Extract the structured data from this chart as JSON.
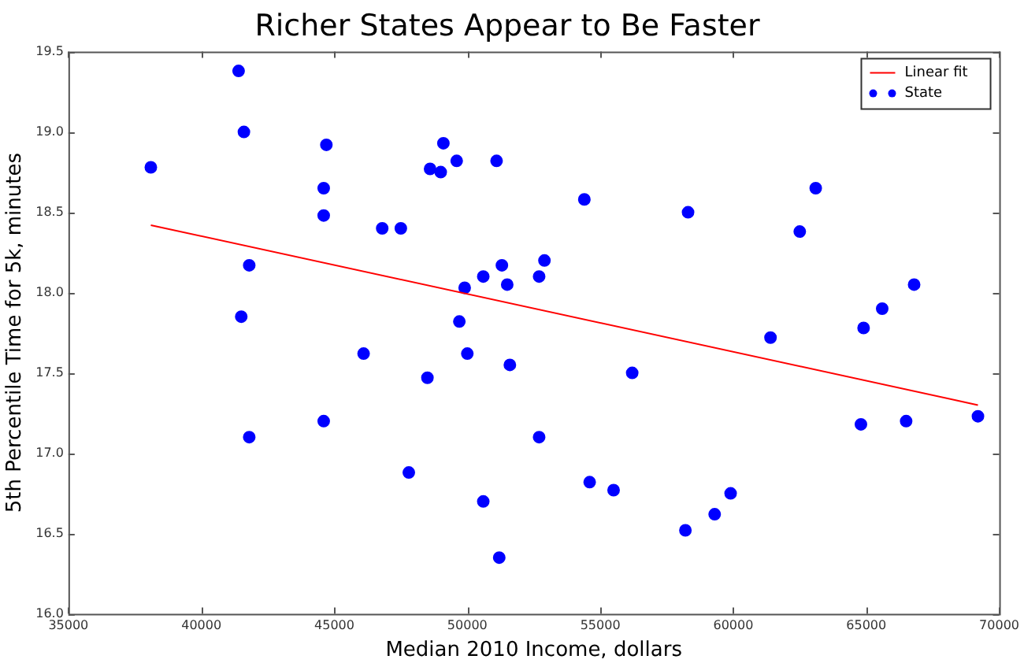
{
  "chart_data": {
    "type": "scatter",
    "title": "Richer States Appear to Be Faster",
    "xlabel": "Median 2010 Income, dollars",
    "ylabel": "5th Percentile Time for 5k, minutes",
    "xlim": [
      35000,
      70000
    ],
    "xticks": [
      35000,
      40000,
      45000,
      50000,
      55000,
      60000,
      65000,
      70000
    ],
    "ylim": [
      16.0,
      19.5
    ],
    "yticks": [
      {
        "value": 16.0,
        "label": "16.0"
      },
      {
        "value": 16.5,
        "label": "16.5"
      },
      {
        "value": 17.0,
        "label": "17.0"
      },
      {
        "value": 17.5,
        "label": "17.5"
      },
      {
        "value": 18.0,
        "label": "18.0"
      },
      {
        "value": 18.5,
        "label": "18.5"
      },
      {
        "value": 19.0,
        "label": "19.0"
      },
      {
        "value": 19.5,
        "label": "19.5"
      }
    ],
    "grid": false,
    "legend": "top right",
    "marker": "circle",
    "series": [
      {
        "name": "Linear fit",
        "type": "line",
        "color": "#ff0000",
        "marker": "none",
        "x": [
          38100,
          69200
        ],
        "values": [
          18.42,
          17.3
        ]
      },
      {
        "name": "State",
        "type": "scatter",
        "color": "#0000ff",
        "x": [
          38100,
          41400,
          41600,
          41800,
          41500,
          41800,
          44600,
          44600,
          44700,
          44600,
          46100,
          46800,
          47500,
          47800,
          48600,
          48500,
          49000,
          49100,
          49600,
          49700,
          49900,
          50000,
          50600,
          50600,
          51100,
          51200,
          51300,
          51500,
          51600,
          52700,
          52900,
          52700,
          54400,
          54600,
          55500,
          56200,
          58300,
          58200,
          59300,
          59900,
          61400,
          62500,
          63100,
          64900,
          64800,
          65600,
          66500,
          66800,
          69200
        ],
        "values": [
          18.78,
          19.38,
          19.0,
          18.17,
          17.85,
          17.1,
          18.65,
          18.48,
          18.92,
          17.2,
          17.62,
          18.4,
          18.4,
          16.88,
          18.77,
          17.47,
          18.75,
          18.93,
          18.82,
          17.82,
          18.03,
          17.62,
          18.1,
          16.7,
          18.82,
          16.35,
          18.17,
          18.05,
          17.55,
          18.1,
          18.2,
          17.1,
          18.58,
          16.82,
          16.77,
          17.5,
          18.5,
          16.52,
          16.62,
          16.75,
          17.72,
          18.38,
          18.65,
          17.78,
          17.18,
          17.9,
          17.2,
          18.05,
          17.23
        ]
      }
    ]
  }
}
